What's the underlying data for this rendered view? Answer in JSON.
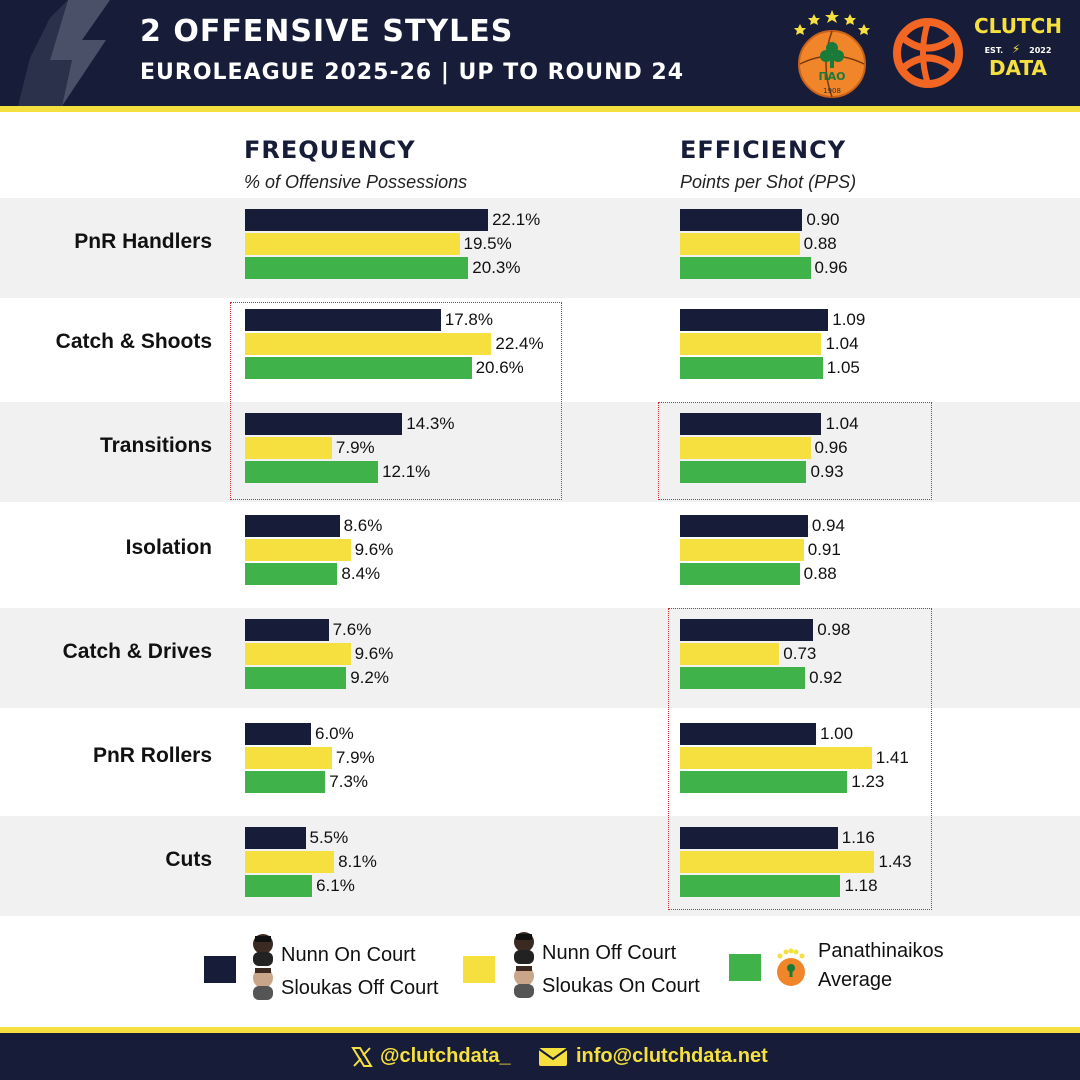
{
  "header": {
    "title": "2 OFFENSIVE STYLES",
    "subtitle": "EUROLEAGUE 2025-26 | UP TO ROUND 24",
    "team_logo_text": "ΠΑΟ",
    "team_logo_year": "1908",
    "brand_top": "CLUTCH",
    "brand_est": "EST.",
    "brand_year": "2022",
    "brand_bottom": "DATA"
  },
  "colors": {
    "navy": "#171d38",
    "yellow": "#f5e03f",
    "green": "#3fb34a",
    "row_shade": "#f1f1f1",
    "highlight": "#d62a2a",
    "euroleague_orange": "#f26522"
  },
  "chart_data": [
    {
      "type": "bar",
      "orientation": "horizontal",
      "title": "FREQUENCY",
      "subtitle": "% of Offensive Possessions",
      "categories": [
        "PnR Handlers",
        "Catch & Shoots",
        "Transitions",
        "Isolation",
        "Catch & Drives",
        "PnR Rollers",
        "Cuts"
      ],
      "series": [
        {
          "name": "Nunn On Court / Sloukas Off Court",
          "color": "#171d38",
          "values": [
            22.1,
            17.8,
            14.3,
            8.6,
            7.6,
            6.0,
            5.5
          ],
          "labels": [
            "22.1%",
            "17.8%",
            "14.3%",
            "8.6%",
            "7.6%",
            "6.0%",
            "5.5%"
          ]
        },
        {
          "name": "Nunn Off Court / Sloukas On Court",
          "color": "#f5e03f",
          "values": [
            19.5,
            22.4,
            7.9,
            9.6,
            9.6,
            7.9,
            8.1
          ],
          "labels": [
            "19.5%",
            "22.4%",
            "7.9%",
            "9.6%",
            "9.6%",
            "7.9%",
            "8.1%"
          ]
        },
        {
          "name": "Panathinaikos Average",
          "color": "#3fb34a",
          "values": [
            20.3,
            20.6,
            12.1,
            8.4,
            9.2,
            7.3,
            6.1
          ],
          "labels": [
            "20.3%",
            "20.6%",
            "12.1%",
            "8.4%",
            "9.2%",
            "7.3%",
            "6.1%"
          ]
        }
      ],
      "highlighted_categories": [
        "Catch & Shoots",
        "Transitions"
      ]
    },
    {
      "type": "bar",
      "orientation": "horizontal",
      "title": "EFFICIENCY",
      "subtitle": "Points per Shot (PPS)",
      "categories": [
        "PnR Handlers",
        "Catch & Shoots",
        "Transitions",
        "Isolation",
        "Catch & Drives",
        "PnR Rollers",
        "Cuts"
      ],
      "series": [
        {
          "name": "Nunn On Court / Sloukas Off Court",
          "color": "#171d38",
          "values": [
            0.9,
            1.09,
            1.04,
            0.94,
            0.98,
            1.0,
            1.16
          ],
          "labels": [
            "0.90",
            "1.09",
            "1.04",
            "0.94",
            "0.98",
            "1.00",
            "1.16"
          ]
        },
        {
          "name": "Nunn Off Court / Sloukas On Court",
          "color": "#f5e03f",
          "values": [
            0.88,
            1.04,
            0.96,
            0.91,
            0.73,
            1.41,
            1.43
          ],
          "labels": [
            "0.88",
            "1.04",
            "0.96",
            "0.91",
            "0.73",
            "1.41",
            "1.43"
          ]
        },
        {
          "name": "Panathinaikos Average",
          "color": "#3fb34a",
          "values": [
            0.96,
            1.05,
            0.93,
            0.88,
            0.92,
            1.23,
            1.18
          ],
          "labels": [
            "0.96",
            "1.05",
            "0.93",
            "0.88",
            "0.92",
            "1.23",
            "1.18"
          ]
        }
      ],
      "highlighted_categories": [
        "Transitions",
        "Catch & Drives",
        "PnR Rollers",
        "Cuts"
      ]
    }
  ],
  "legend": {
    "navy_line1": "Nunn On Court",
    "navy_line2": "Sloukas Off Court",
    "yellow_line1": "Nunn Off Court",
    "yellow_line2": "Sloukas On Court",
    "green_line1": "Panathinaikos",
    "green_line2": "Average"
  },
  "footer": {
    "twitter_handle": "@clutchdata_",
    "email": "info@clutchdata.net",
    "twitter_icon": "x-logo-icon",
    "email_icon": "envelope-icon"
  }
}
